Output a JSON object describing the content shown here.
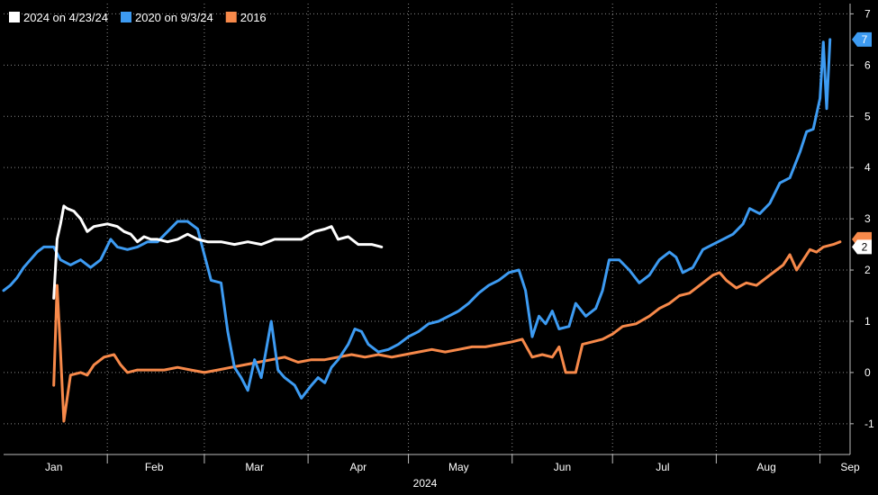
{
  "chart_data": {
    "type": "line",
    "xlabel": "2024",
    "ylabel": "",
    "ylim": [
      -1.6,
      7.2
    ],
    "y_ticks": [
      -1,
      0,
      1,
      2,
      3,
      4,
      5,
      6,
      7
    ],
    "grid": true,
    "legend_position": "top-left",
    "x_domain": [
      "2024-01-01",
      "2024-09-10"
    ],
    "month_ticks": [
      {
        "label": "Jan",
        "date": "2024-01-16"
      },
      {
        "label": "Feb",
        "date": "2024-02-15"
      },
      {
        "label": "Mar",
        "date": "2024-03-16"
      },
      {
        "label": "Apr",
        "date": "2024-04-16"
      },
      {
        "label": "May",
        "date": "2024-05-16"
      },
      {
        "label": "Jun",
        "date": "2024-06-16"
      },
      {
        "label": "Jul",
        "date": "2024-07-16"
      },
      {
        "label": "Aug",
        "date": "2024-08-16"
      },
      {
        "label": "Sep",
        "date": "2024-09-10"
      }
    ],
    "month_separators": [
      "2024-02-01",
      "2024-03-01",
      "2024-04-01",
      "2024-05-01",
      "2024-06-01",
      "2024-07-01",
      "2024-08-01",
      "2024-09-01"
    ],
    "series": [
      {
        "name": "2024 on 4/23/24",
        "color": "#ffffff",
        "points": [
          [
            "2024-01-16",
            1.45
          ],
          [
            "2024-01-17",
            2.6
          ],
          [
            "2024-01-18",
            2.9
          ],
          [
            "2024-01-19",
            3.25
          ],
          [
            "2024-01-20",
            3.2
          ],
          [
            "2024-01-22",
            3.15
          ],
          [
            "2024-01-24",
            3.0
          ],
          [
            "2024-01-26",
            2.75
          ],
          [
            "2024-01-28",
            2.85
          ],
          [
            "2024-02-01",
            2.9
          ],
          [
            "2024-02-04",
            2.85
          ],
          [
            "2024-02-06",
            2.75
          ],
          [
            "2024-02-08",
            2.7
          ],
          [
            "2024-02-10",
            2.55
          ],
          [
            "2024-02-12",
            2.65
          ],
          [
            "2024-02-14",
            2.6
          ],
          [
            "2024-02-16",
            2.6
          ],
          [
            "2024-02-19",
            2.55
          ],
          [
            "2024-02-22",
            2.6
          ],
          [
            "2024-02-25",
            2.7
          ],
          [
            "2024-02-28",
            2.6
          ],
          [
            "2024-03-02",
            2.55
          ],
          [
            "2024-03-06",
            2.55
          ],
          [
            "2024-03-10",
            2.5
          ],
          [
            "2024-03-14",
            2.55
          ],
          [
            "2024-03-18",
            2.5
          ],
          [
            "2024-03-22",
            2.6
          ],
          [
            "2024-03-26",
            2.6
          ],
          [
            "2024-03-30",
            2.6
          ],
          [
            "2024-04-03",
            2.75
          ],
          [
            "2024-04-06",
            2.8
          ],
          [
            "2024-04-08",
            2.85
          ],
          [
            "2024-04-10",
            2.6
          ],
          [
            "2024-04-13",
            2.65
          ],
          [
            "2024-04-16",
            2.5
          ],
          [
            "2024-04-20",
            2.5
          ],
          [
            "2024-04-23",
            2.45
          ]
        ]
      },
      {
        "name": "2020 on 9/3/24",
        "color": "#3d9bf2",
        "points": [
          [
            "2024-01-01",
            1.6
          ],
          [
            "2024-01-03",
            1.7
          ],
          [
            "2024-01-05",
            1.85
          ],
          [
            "2024-01-07",
            2.05
          ],
          [
            "2024-01-09",
            2.2
          ],
          [
            "2024-01-11",
            2.35
          ],
          [
            "2024-01-13",
            2.45
          ],
          [
            "2024-01-16",
            2.45
          ],
          [
            "2024-01-18",
            2.2
          ],
          [
            "2024-01-21",
            2.1
          ],
          [
            "2024-01-24",
            2.2
          ],
          [
            "2024-01-27",
            2.05
          ],
          [
            "2024-01-30",
            2.2
          ],
          [
            "2024-02-02",
            2.6
          ],
          [
            "2024-02-04",
            2.45
          ],
          [
            "2024-02-07",
            2.4
          ],
          [
            "2024-02-10",
            2.45
          ],
          [
            "2024-02-13",
            2.55
          ],
          [
            "2024-02-16",
            2.55
          ],
          [
            "2024-02-19",
            2.75
          ],
          [
            "2024-02-22",
            2.95
          ],
          [
            "2024-02-25",
            2.95
          ],
          [
            "2024-02-28",
            2.8
          ],
          [
            "2024-03-01",
            2.3
          ],
          [
            "2024-03-03",
            1.8
          ],
          [
            "2024-03-06",
            1.75
          ],
          [
            "2024-03-08",
            0.8
          ],
          [
            "2024-03-10",
            0.1
          ],
          [
            "2024-03-12",
            -0.1
          ],
          [
            "2024-03-14",
            -0.35
          ],
          [
            "2024-03-16",
            0.25
          ],
          [
            "2024-03-18",
            -0.1
          ],
          [
            "2024-03-21",
            1.0
          ],
          [
            "2024-03-23",
            0.05
          ],
          [
            "2024-03-25",
            -0.1
          ],
          [
            "2024-03-28",
            -0.25
          ],
          [
            "2024-03-30",
            -0.5
          ],
          [
            "2024-04-02",
            -0.25
          ],
          [
            "2024-04-04",
            -0.1
          ],
          [
            "2024-04-06",
            -0.2
          ],
          [
            "2024-04-08",
            0.1
          ],
          [
            "2024-04-10",
            0.25
          ],
          [
            "2024-04-13",
            0.55
          ],
          [
            "2024-04-15",
            0.85
          ],
          [
            "2024-04-17",
            0.8
          ],
          [
            "2024-04-19",
            0.55
          ],
          [
            "2024-04-22",
            0.4
          ],
          [
            "2024-04-25",
            0.45
          ],
          [
            "2024-04-28",
            0.55
          ],
          [
            "2024-05-01",
            0.7
          ],
          [
            "2024-05-04",
            0.8
          ],
          [
            "2024-05-07",
            0.95
          ],
          [
            "2024-05-10",
            1.0
          ],
          [
            "2024-05-13",
            1.1
          ],
          [
            "2024-05-16",
            1.2
          ],
          [
            "2024-05-19",
            1.35
          ],
          [
            "2024-05-22",
            1.55
          ],
          [
            "2024-05-25",
            1.7
          ],
          [
            "2024-05-28",
            1.8
          ],
          [
            "2024-05-31",
            1.95
          ],
          [
            "2024-06-03",
            2.0
          ],
          [
            "2024-06-05",
            1.6
          ],
          [
            "2024-06-07",
            0.7
          ],
          [
            "2024-06-09",
            1.1
          ],
          [
            "2024-06-11",
            0.95
          ],
          [
            "2024-06-13",
            1.2
          ],
          [
            "2024-06-15",
            0.85
          ],
          [
            "2024-06-18",
            0.9
          ],
          [
            "2024-06-20",
            1.35
          ],
          [
            "2024-06-23",
            1.1
          ],
          [
            "2024-06-26",
            1.25
          ],
          [
            "2024-06-28",
            1.6
          ],
          [
            "2024-06-30",
            2.2
          ],
          [
            "2024-07-03",
            2.2
          ],
          [
            "2024-07-06",
            2.0
          ],
          [
            "2024-07-09",
            1.75
          ],
          [
            "2024-07-12",
            1.9
          ],
          [
            "2024-07-15",
            2.2
          ],
          [
            "2024-07-18",
            2.35
          ],
          [
            "2024-07-20",
            2.25
          ],
          [
            "2024-07-22",
            1.95
          ],
          [
            "2024-07-25",
            2.05
          ],
          [
            "2024-07-28",
            2.4
          ],
          [
            "2024-07-31",
            2.5
          ],
          [
            "2024-08-03",
            2.6
          ],
          [
            "2024-08-06",
            2.7
          ],
          [
            "2024-08-09",
            2.9
          ],
          [
            "2024-08-11",
            3.2
          ],
          [
            "2024-08-14",
            3.1
          ],
          [
            "2024-08-17",
            3.3
          ],
          [
            "2024-08-20",
            3.7
          ],
          [
            "2024-08-23",
            3.8
          ],
          [
            "2024-08-26",
            4.3
          ],
          [
            "2024-08-28",
            4.7
          ],
          [
            "2024-08-30",
            4.75
          ],
          [
            "2024-09-01",
            5.35
          ],
          [
            "2024-09-02",
            6.45
          ],
          [
            "2024-09-03",
            5.15
          ],
          [
            "2024-09-04",
            6.5
          ]
        ]
      },
      {
        "name": "2016",
        "color": "#f7894a",
        "points": [
          [
            "2024-01-16",
            -0.25
          ],
          [
            "2024-01-17",
            1.7
          ],
          [
            "2024-01-18",
            0.4
          ],
          [
            "2024-01-19",
            -0.95
          ],
          [
            "2024-01-21",
            -0.05
          ],
          [
            "2024-01-24",
            0.0
          ],
          [
            "2024-01-26",
            -0.05
          ],
          [
            "2024-01-28",
            0.15
          ],
          [
            "2024-01-31",
            0.3
          ],
          [
            "2024-02-03",
            0.35
          ],
          [
            "2024-02-05",
            0.15
          ],
          [
            "2024-02-07",
            0.0
          ],
          [
            "2024-02-10",
            0.05
          ],
          [
            "2024-02-14",
            0.05
          ],
          [
            "2024-02-18",
            0.05
          ],
          [
            "2024-02-22",
            0.1
          ],
          [
            "2024-02-26",
            0.05
          ],
          [
            "2024-03-01",
            0.0
          ],
          [
            "2024-03-05",
            0.05
          ],
          [
            "2024-03-09",
            0.1
          ],
          [
            "2024-03-13",
            0.15
          ],
          [
            "2024-03-17",
            0.2
          ],
          [
            "2024-03-21",
            0.25
          ],
          [
            "2024-03-25",
            0.3
          ],
          [
            "2024-03-29",
            0.2
          ],
          [
            "2024-04-02",
            0.25
          ],
          [
            "2024-04-06",
            0.25
          ],
          [
            "2024-04-10",
            0.3
          ],
          [
            "2024-04-14",
            0.35
          ],
          [
            "2024-04-18",
            0.3
          ],
          [
            "2024-04-22",
            0.35
          ],
          [
            "2024-04-26",
            0.3
          ],
          [
            "2024-04-30",
            0.35
          ],
          [
            "2024-05-04",
            0.4
          ],
          [
            "2024-05-08",
            0.45
          ],
          [
            "2024-05-12",
            0.4
          ],
          [
            "2024-05-16",
            0.45
          ],
          [
            "2024-05-20",
            0.5
          ],
          [
            "2024-05-24",
            0.5
          ],
          [
            "2024-05-28",
            0.55
          ],
          [
            "2024-06-01",
            0.6
          ],
          [
            "2024-06-04",
            0.65
          ],
          [
            "2024-06-07",
            0.3
          ],
          [
            "2024-06-10",
            0.35
          ],
          [
            "2024-06-13",
            0.3
          ],
          [
            "2024-06-15",
            0.5
          ],
          [
            "2024-06-17",
            0.0
          ],
          [
            "2024-06-20",
            0.0
          ],
          [
            "2024-06-22",
            0.55
          ],
          [
            "2024-06-25",
            0.6
          ],
          [
            "2024-06-28",
            0.65
          ],
          [
            "2024-07-01",
            0.75
          ],
          [
            "2024-07-04",
            0.9
          ],
          [
            "2024-07-08",
            0.95
          ],
          [
            "2024-07-12",
            1.1
          ],
          [
            "2024-07-15",
            1.25
          ],
          [
            "2024-07-18",
            1.35
          ],
          [
            "2024-07-21",
            1.5
          ],
          [
            "2024-07-24",
            1.55
          ],
          [
            "2024-07-28",
            1.75
          ],
          [
            "2024-07-31",
            1.9
          ],
          [
            "2024-08-02",
            1.95
          ],
          [
            "2024-08-04",
            1.8
          ],
          [
            "2024-08-07",
            1.65
          ],
          [
            "2024-08-10",
            1.75
          ],
          [
            "2024-08-13",
            1.7
          ],
          [
            "2024-08-16",
            1.85
          ],
          [
            "2024-08-19",
            2.0
          ],
          [
            "2024-08-21",
            2.1
          ],
          [
            "2024-08-23",
            2.3
          ],
          [
            "2024-08-25",
            2.0
          ],
          [
            "2024-08-27",
            2.2
          ],
          [
            "2024-08-29",
            2.4
          ],
          [
            "2024-08-31",
            2.35
          ],
          [
            "2024-09-02",
            2.45
          ],
          [
            "2024-09-05",
            2.5
          ],
          [
            "2024-09-07",
            2.55
          ]
        ]
      }
    ],
    "last_value_tags": [
      {
        "series": "2020 on 9/3/24",
        "text": "7",
        "value": 6.5,
        "fill": "#3d9bf2",
        "text_color": "#ffffff"
      },
      {
        "series": "2016",
        "text": "",
        "value": 2.6,
        "fill": "#f7894a",
        "text_color": "#000000"
      },
      {
        "series": "2024 on 4/23/24",
        "text": "2",
        "value": 2.45,
        "fill": "#ffffff",
        "text_color": "#000000"
      }
    ]
  }
}
